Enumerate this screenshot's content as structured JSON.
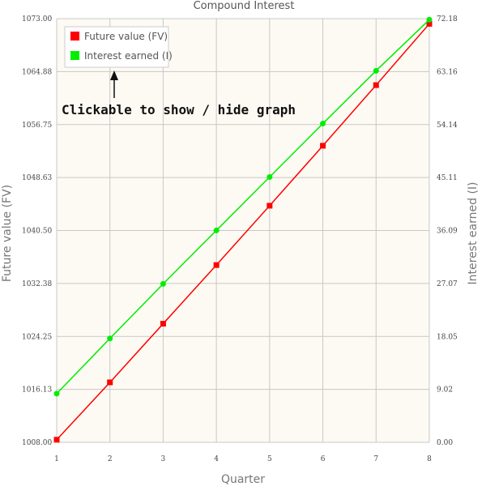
{
  "chart_data": {
    "type": "line",
    "title": "Compound Interest",
    "xlabel": "Quarter",
    "ylabel_left": "Future value (FV)",
    "ylabel_right": "Interest earned (I)",
    "categories": [
      1,
      2,
      3,
      4,
      5,
      6,
      7,
      8
    ],
    "left_axis": {
      "range": [
        1008.0,
        1073.0
      ],
      "ticks": [
        "1008.00",
        "1016.13",
        "1024.25",
        "1032.38",
        "1040.50",
        "1048.63",
        "1056.75",
        "1064.88",
        "1073.00"
      ]
    },
    "right_axis": {
      "range": [
        0.0,
        72.18
      ],
      "ticks": [
        "0.00",
        "9.02",
        "18.05",
        "27.07",
        "36.09",
        "45.11",
        "54.14",
        "63.16",
        "72.18"
      ]
    },
    "series": [
      {
        "name": "Future value (FV)",
        "axis": "left",
        "color": "#ff0000",
        "marker": "square",
        "values": [
          1008.4,
          1017.2,
          1026.2,
          1035.2,
          1044.3,
          1053.5,
          1062.8,
          1072.2
        ]
      },
      {
        "name": "Interest earned (I)",
        "axis": "right",
        "color": "#00ee00",
        "marker": "circle",
        "values": [
          8.3,
          17.7,
          27.0,
          36.1,
          45.2,
          54.3,
          63.3,
          72.0
        ]
      }
    ],
    "grid": true,
    "legend_position": "top-left",
    "background_color": "#fdfaf3"
  },
  "annotation": {
    "text": "Clickable to show / hide graph",
    "arrow": "up-arrow-icon"
  }
}
